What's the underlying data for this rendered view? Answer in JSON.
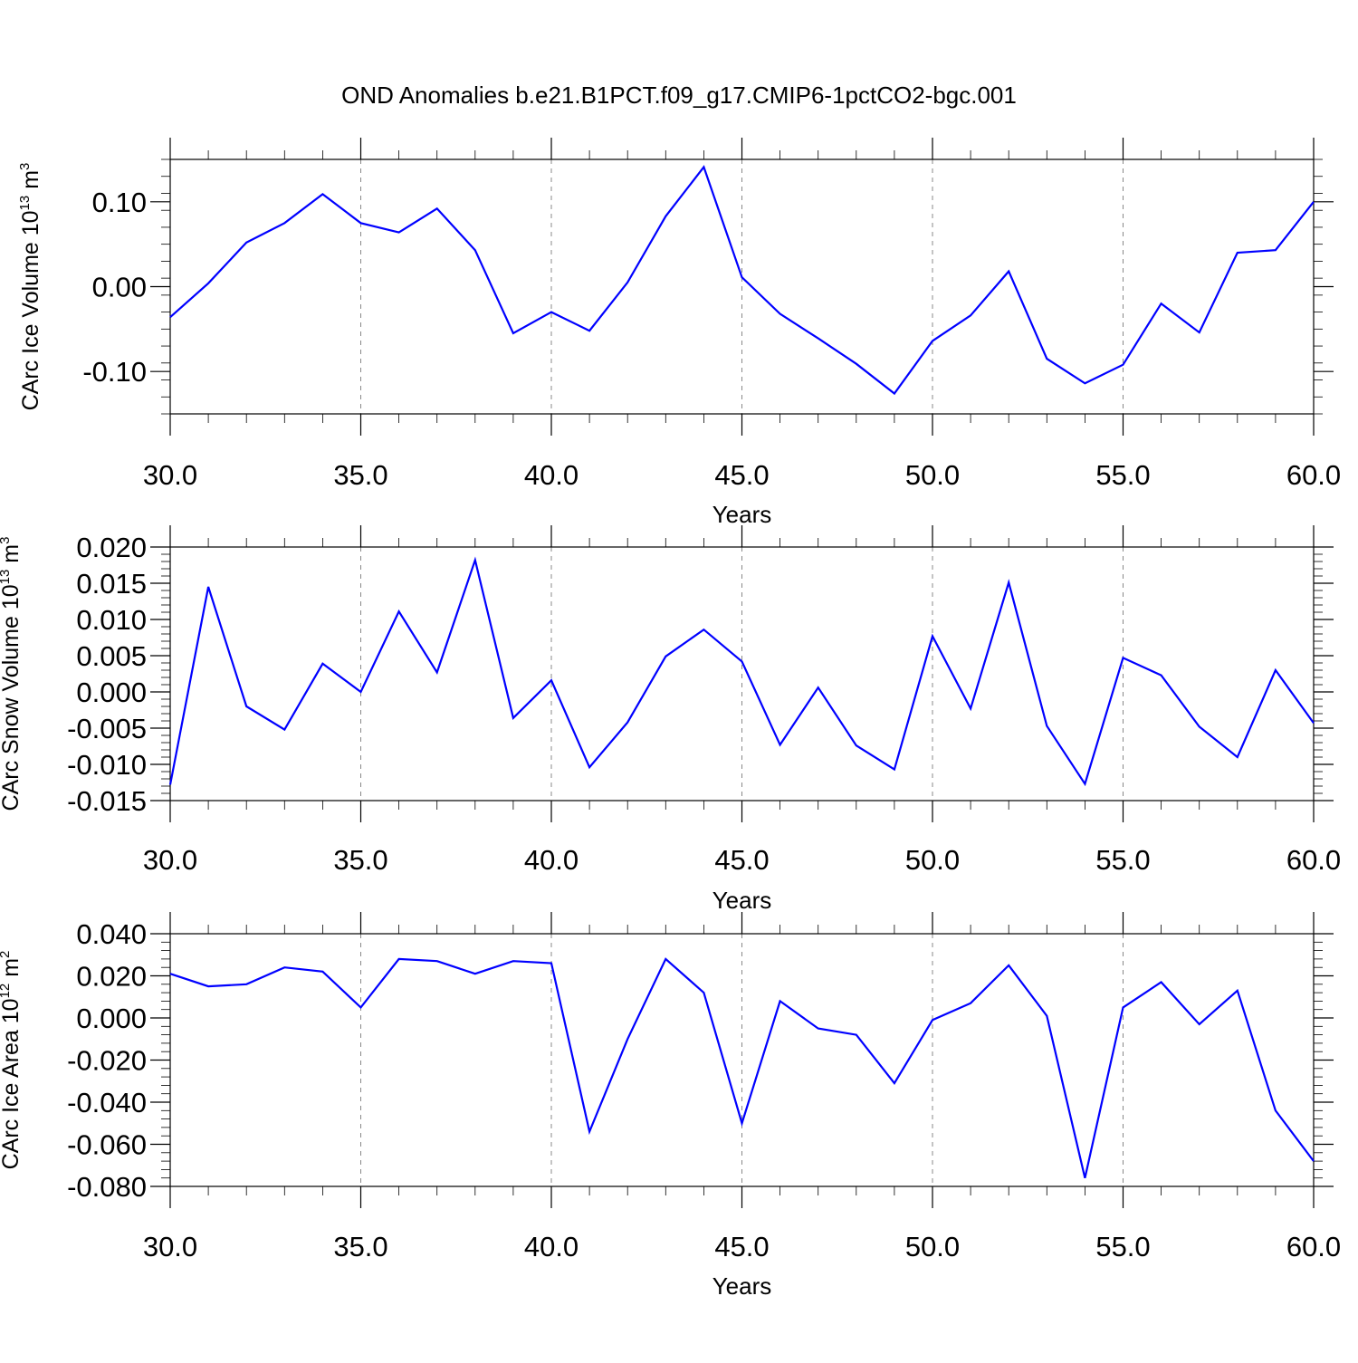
{
  "title": "OND Anomalies b.e21.B1PCT.f09_g17.CMIP6-1pctCO2-bgc.001",
  "style": {
    "line_color": "#0000ff",
    "grid": "x-major dashed"
  },
  "chart_data": [
    {
      "type": "line",
      "ylabel": {
        "text": "CArc Ice Volume 10",
        "sup": "13",
        "unit": " m",
        "unit_sup": "3"
      },
      "xlabel": "Years",
      "xlim": [
        30,
        60
      ],
      "ylim": [
        -0.15,
        0.15
      ],
      "xticks": [
        30,
        35,
        40,
        45,
        50,
        55,
        60
      ],
      "xtick_labels": [
        "30.0",
        "35.0",
        "40.0",
        "45.0",
        "50.0",
        "55.0",
        "60.0"
      ],
      "yticks": [
        -0.1,
        0.0,
        0.1
      ],
      "ytick_labels": [
        "-0.10",
        "0.00",
        "0.10"
      ],
      "yminor_step": 0.02,
      "x": [
        30,
        31,
        32,
        33,
        34,
        35,
        36,
        37,
        38,
        39,
        40,
        41,
        42,
        43,
        44,
        45,
        46,
        47,
        48,
        49,
        50,
        51,
        52,
        53,
        54,
        55,
        56,
        57,
        58,
        59,
        60
      ],
      "values": [
        -0.036,
        0.004,
        0.052,
        0.075,
        0.109,
        0.075,
        0.064,
        0.092,
        0.043,
        -0.055,
        -0.03,
        -0.052,
        0.005,
        0.083,
        0.141,
        0.011,
        -0.032,
        -0.061,
        -0.091,
        -0.126,
        -0.064,
        -0.034,
        0.018,
        -0.085,
        -0.114,
        -0.092,
        -0.02,
        -0.054,
        0.04,
        0.043,
        0.1
      ]
    },
    {
      "type": "line",
      "ylabel": {
        "text": "CArc Snow Volume 10",
        "sup": "13",
        "unit": " m",
        "unit_sup": "3"
      },
      "xlabel": "Years",
      "xlim": [
        30,
        60
      ],
      "ylim": [
        -0.015,
        0.02
      ],
      "xticks": [
        30,
        35,
        40,
        45,
        50,
        55,
        60
      ],
      "xtick_labels": [
        "30.0",
        "35.0",
        "40.0",
        "45.0",
        "50.0",
        "55.0",
        "60.0"
      ],
      "yticks": [
        -0.015,
        -0.01,
        -0.005,
        0.0,
        0.005,
        0.01,
        0.015,
        0.02
      ],
      "ytick_labels": [
        "-0.015",
        "-0.010",
        "-0.005",
        "0.000",
        "0.005",
        "0.010",
        "0.015",
        "0.020"
      ],
      "yminor_step": 0.001,
      "x": [
        30,
        31,
        32,
        33,
        34,
        35,
        36,
        37,
        38,
        39,
        40,
        41,
        42,
        43,
        44,
        45,
        46,
        47,
        48,
        49,
        50,
        51,
        52,
        53,
        54,
        55,
        56,
        57,
        58,
        59,
        60
      ],
      "values": [
        -0.0128,
        0.0145,
        -0.002,
        -0.0052,
        0.0039,
        0.0,
        0.0111,
        0.0027,
        0.0182,
        -0.0036,
        0.0016,
        -0.0104,
        -0.0042,
        0.0049,
        0.0086,
        0.0042,
        -0.0073,
        0.0006,
        -0.0074,
        -0.0107,
        0.0077,
        -0.0023,
        0.0151,
        -0.0047,
        -0.0127,
        0.0047,
        0.0023,
        -0.0048,
        -0.009,
        0.003,
        -0.0043
      ]
    },
    {
      "type": "line",
      "ylabel": {
        "text": "CArc Ice Area 10",
        "sup": "12",
        "unit": " m",
        "unit_sup": "2"
      },
      "xlabel": "Years",
      "xlim": [
        30,
        60
      ],
      "ylim": [
        -0.08,
        0.04
      ],
      "xticks": [
        30,
        35,
        40,
        45,
        50,
        55,
        60
      ],
      "xtick_labels": [
        "30.0",
        "35.0",
        "40.0",
        "45.0",
        "50.0",
        "55.0",
        "60.0"
      ],
      "yticks": [
        -0.08,
        -0.06,
        -0.04,
        -0.02,
        0.0,
        0.02,
        0.04
      ],
      "ytick_labels": [
        "-0.080",
        "-0.060",
        "-0.040",
        "-0.020",
        "0.000",
        "0.020",
        "0.040"
      ],
      "yminor_step": 0.004,
      "x": [
        30,
        31,
        32,
        33,
        34,
        35,
        36,
        37,
        38,
        39,
        40,
        41,
        42,
        43,
        44,
        45,
        46,
        47,
        48,
        49,
        50,
        51,
        52,
        53,
        54,
        55,
        56,
        57,
        58,
        59,
        60
      ],
      "values": [
        0.021,
        0.015,
        0.016,
        0.024,
        0.022,
        0.005,
        0.028,
        0.027,
        0.021,
        0.027,
        0.026,
        -0.054,
        -0.01,
        0.028,
        0.012,
        -0.05,
        0.008,
        -0.005,
        -0.008,
        -0.031,
        -0.001,
        0.007,
        0.025,
        0.001,
        -0.076,
        0.005,
        0.017,
        -0.003,
        0.013,
        -0.044,
        -0.068
      ]
    }
  ]
}
